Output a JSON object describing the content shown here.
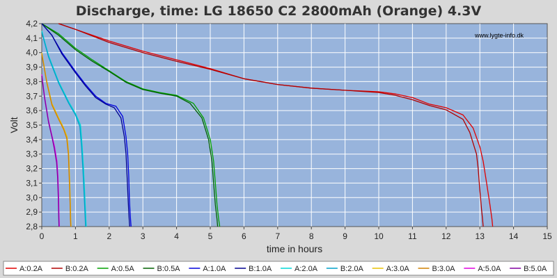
{
  "chart_data": {
    "type": "line",
    "title": "Discharge, time: LG 18650 C2 2800mAh (Orange) 4.3V",
    "xlabel": "time in hours",
    "ylabel": "Volt",
    "watermark": "www.lygte-info.dk",
    "xlim": [
      0,
      15
    ],
    "ylim": [
      2.8,
      4.2
    ],
    "xticks": [
      "0",
      "1",
      "2",
      "3",
      "4",
      "5",
      "6",
      "7",
      "8",
      "9",
      "10",
      "11",
      "12",
      "13",
      "14",
      "15"
    ],
    "yticks": [
      "2,8",
      "2,9",
      "3,0",
      "3,1",
      "3,2",
      "3,3",
      "3,4",
      "3,5",
      "3,6",
      "3,7",
      "3,8",
      "3,9",
      "4,0",
      "4,1",
      "4,2"
    ],
    "grid": true,
    "plot_background": "#98b4dc",
    "legend_position": "bottom",
    "series": [
      {
        "name": "A:0.2A",
        "color": "#e00000",
        "x": [
          0.5,
          1,
          2,
          3,
          4,
          5,
          6,
          7,
          8,
          9,
          10,
          10.5,
          11,
          11.5,
          12,
          12.5,
          12.8,
          13.0,
          13.1,
          13.2,
          13.3,
          13.36,
          13.38
        ],
        "y": [
          4.2,
          4.16,
          4.08,
          4.01,
          3.95,
          3.89,
          3.82,
          3.78,
          3.755,
          3.74,
          3.73,
          3.715,
          3.69,
          3.645,
          3.62,
          3.57,
          3.48,
          3.35,
          3.25,
          3.1,
          2.95,
          2.85,
          2.8
        ]
      },
      {
        "name": "B:0.2A",
        "color": "#b00000",
        "x": [
          0.5,
          1,
          2,
          3,
          4,
          5,
          6,
          7,
          8,
          9,
          10,
          10.5,
          11,
          11.5,
          12,
          12.5,
          12.7,
          12.9,
          12.95,
          13.0,
          13.05,
          13.08,
          13.1
        ],
        "y": [
          4.2,
          4.16,
          4.07,
          4.0,
          3.94,
          3.885,
          3.82,
          3.78,
          3.755,
          3.74,
          3.725,
          3.705,
          3.675,
          3.635,
          3.605,
          3.54,
          3.45,
          3.3,
          3.2,
          3.05,
          2.92,
          2.85,
          2.8
        ]
      },
      {
        "name": "A:0.5A",
        "color": "#00a000",
        "x": [
          0,
          0.5,
          1,
          1.5,
          2,
          2.5,
          3,
          3.5,
          4,
          4.5,
          4.8,
          5.0,
          5.1,
          5.15,
          5.2,
          5.25,
          5.28
        ],
        "y": [
          4.2,
          4.13,
          4.03,
          3.95,
          3.875,
          3.8,
          3.75,
          3.725,
          3.705,
          3.65,
          3.55,
          3.4,
          3.25,
          3.1,
          2.95,
          2.85,
          2.8
        ]
      },
      {
        "name": "B:0.5A",
        "color": "#006000",
        "x": [
          0,
          0.5,
          1,
          1.5,
          2,
          2.5,
          3,
          3.5,
          4,
          4.4,
          4.75,
          4.95,
          5.05,
          5.1,
          5.15,
          5.2,
          5.22
        ],
        "y": [
          4.2,
          4.12,
          4.02,
          3.94,
          3.87,
          3.795,
          3.745,
          3.72,
          3.7,
          3.65,
          3.55,
          3.4,
          3.25,
          3.1,
          2.95,
          2.85,
          2.8
        ]
      },
      {
        "name": "A:1.0A",
        "color": "#0000dd",
        "x": [
          0,
          0.3,
          0.6,
          1,
          1.3,
          1.6,
          1.9,
          2.2,
          2.4,
          2.5,
          2.55,
          2.58,
          2.6,
          2.62,
          2.64,
          2.65
        ],
        "y": [
          4.2,
          4.12,
          4.0,
          3.87,
          3.78,
          3.7,
          3.65,
          3.63,
          3.56,
          3.42,
          3.3,
          3.15,
          3.0,
          2.9,
          2.83,
          2.8
        ]
      },
      {
        "name": "B:1.0A",
        "color": "#000090",
        "x": [
          0,
          0.3,
          0.6,
          1,
          1.3,
          1.6,
          1.9,
          2.15,
          2.35,
          2.45,
          2.5,
          2.53,
          2.56,
          2.58,
          2.6,
          2.61
        ],
        "y": [
          4.2,
          4.12,
          3.99,
          3.86,
          3.77,
          3.69,
          3.645,
          3.62,
          3.55,
          3.42,
          3.3,
          3.15,
          3.0,
          2.9,
          2.83,
          2.8
        ]
      },
      {
        "name": "A:2.0A",
        "color": "#00d8d8",
        "x": [
          0,
          0.2,
          0.5,
          0.8,
          1.0,
          1.15,
          1.2,
          1.24,
          1.27,
          1.29,
          1.31,
          1.32
        ],
        "y": [
          4.15,
          3.98,
          3.8,
          3.66,
          3.58,
          3.5,
          3.35,
          3.2,
          3.05,
          2.95,
          2.85,
          2.8
        ]
      },
      {
        "name": "B:2.0A",
        "color": "#00a0c8",
        "x": [
          0,
          0.2,
          0.5,
          0.8,
          1.0,
          1.13,
          1.18,
          1.22,
          1.25,
          1.27,
          1.29,
          1.3
        ],
        "y": [
          4.14,
          3.97,
          3.79,
          3.65,
          3.57,
          3.49,
          3.35,
          3.2,
          3.05,
          2.95,
          2.85,
          2.8
        ]
      },
      {
        "name": "A:3.0A",
        "color": "#e8c000",
        "x": [
          0,
          0.15,
          0.3,
          0.5,
          0.65,
          0.75,
          0.8,
          0.83,
          0.85,
          0.86,
          0.87
        ],
        "y": [
          4.0,
          3.8,
          3.65,
          3.55,
          3.48,
          3.42,
          3.3,
          3.1,
          2.95,
          2.85,
          2.8
        ]
      },
      {
        "name": "B:3.0A",
        "color": "#d08000",
        "x": [
          0,
          0.15,
          0.3,
          0.5,
          0.65,
          0.74,
          0.79,
          0.82,
          0.84,
          0.85,
          0.86
        ],
        "y": [
          3.99,
          3.79,
          3.64,
          3.54,
          3.47,
          3.41,
          3.3,
          3.1,
          2.95,
          2.85,
          2.8
        ]
      },
      {
        "name": "A:5.0A",
        "color": "#e000e0",
        "x": [
          0,
          0.08,
          0.2,
          0.3,
          0.38,
          0.45,
          0.48,
          0.5,
          0.51,
          0.52
        ],
        "y": [
          3.85,
          3.7,
          3.53,
          3.43,
          3.35,
          3.25,
          3.15,
          3.0,
          2.88,
          2.8
        ]
      },
      {
        "name": "B:5.0A",
        "color": "#8000a0",
        "x": [
          0,
          0.08,
          0.2,
          0.3,
          0.37,
          0.44,
          0.47,
          0.49,
          0.5,
          0.51
        ],
        "y": [
          3.84,
          3.69,
          3.52,
          3.42,
          3.34,
          3.24,
          3.14,
          3.0,
          2.88,
          2.8
        ]
      }
    ]
  }
}
